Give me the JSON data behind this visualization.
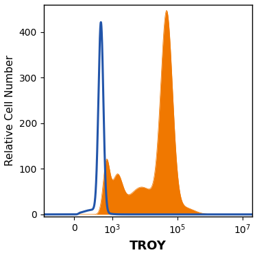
{
  "title": "",
  "xlabel": "TROY",
  "ylabel": "Relative Cell Number",
  "ylim": [
    -5,
    460
  ],
  "yticks": [
    0,
    100,
    200,
    300,
    400
  ],
  "background_color": "#ffffff",
  "blue_color": "#2255aa",
  "orange_color": "#f07800",
  "blue_linewidth": 2.2,
  "orange_linewidth": 0.5,
  "xlabel_fontsize": 13,
  "ylabel_fontsize": 11,
  "tick_fontsize": 10,
  "linthresh": 100,
  "linscale": 0.15
}
